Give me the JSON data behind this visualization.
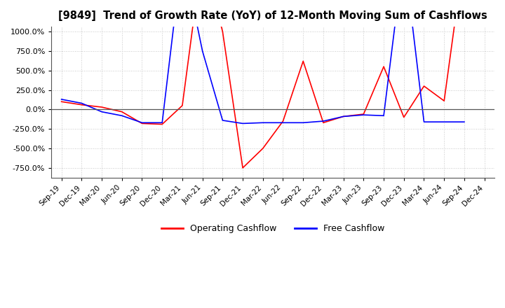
{
  "title": "[9849]  Trend of Growth Rate (YoY) of 12-Month Moving Sum of Cashflows",
  "ylim": [
    -875,
    1062.5
  ],
  "yticks": [
    -750,
    -500,
    -250,
    0,
    250,
    500,
    750,
    1000
  ],
  "background_color": "#ffffff",
  "grid_color": "#c8c8c8",
  "operating_color": "#ff0000",
  "free_color": "#0000ff",
  "legend_labels": [
    "Operating Cashflow",
    "Free Cashflow"
  ],
  "x_labels": [
    "Sep-19",
    "Dec-19",
    "Mar-20",
    "Jun-20",
    "Sep-20",
    "Dec-20",
    "Mar-21",
    "Jun-21",
    "Sep-21",
    "Dec-21",
    "Mar-22",
    "Jun-22",
    "Sep-22",
    "Dec-22",
    "Mar-23",
    "Jun-23",
    "Sep-23",
    "Dec-23",
    "Mar-24",
    "Jun-24",
    "Sep-24",
    "Dec-24"
  ],
  "operating_cashflow": [
    100,
    60,
    30,
    -30,
    -180,
    -190,
    50,
    2000,
    1000,
    -750,
    -500,
    -150,
    620,
    -170,
    -90,
    -60,
    550,
    -100,
    300,
    110,
    2000,
    null
  ],
  "free_cashflow": [
    130,
    80,
    -30,
    -80,
    -170,
    -170,
    2000,
    750,
    -140,
    -180,
    -170,
    -170,
    -170,
    -150,
    -90,
    -70,
    -80,
    2000,
    -160,
    -160,
    -160,
    null
  ]
}
